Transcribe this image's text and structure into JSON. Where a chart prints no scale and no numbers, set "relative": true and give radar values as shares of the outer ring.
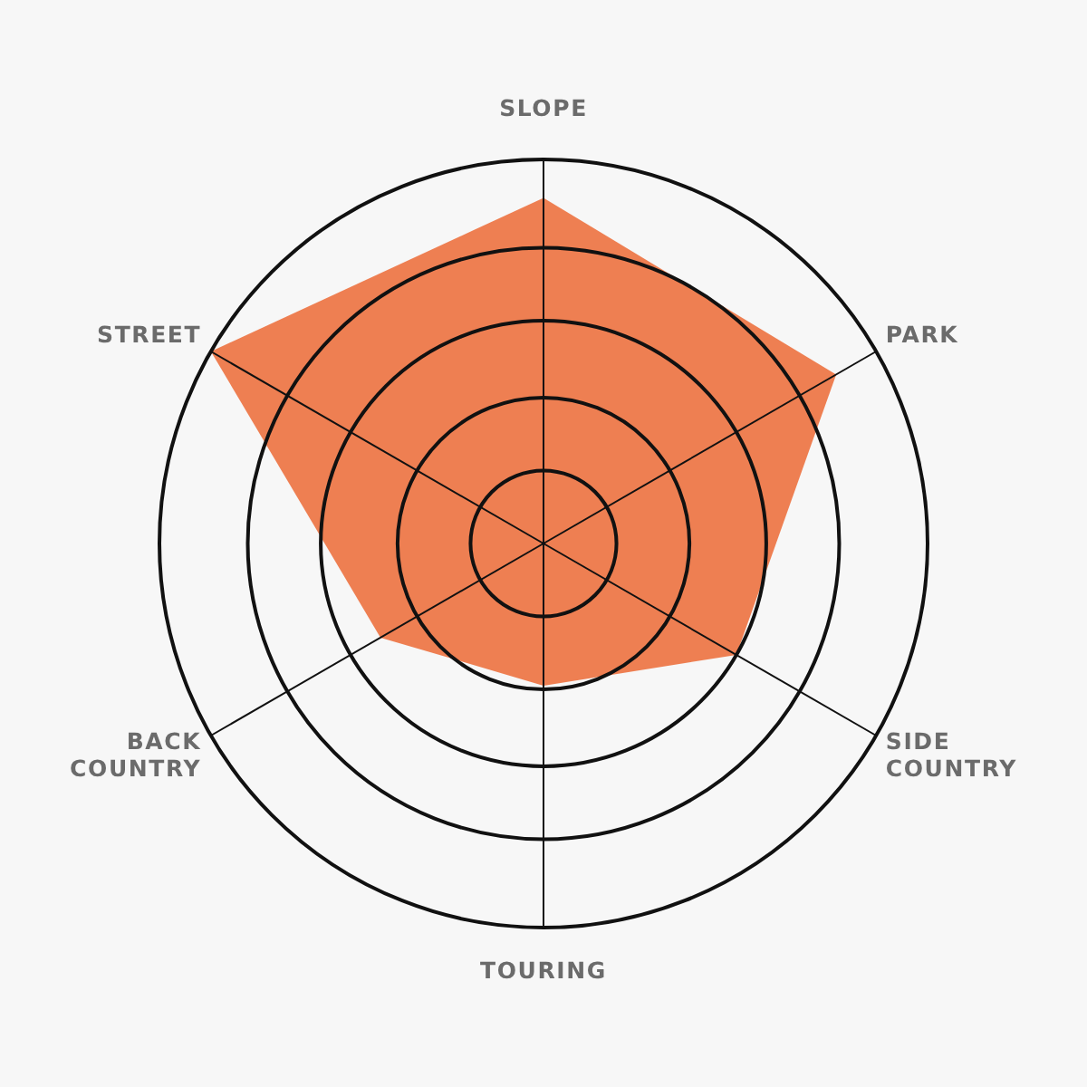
{
  "chart_data": {
    "type": "radar",
    "relative": true,
    "grid": true,
    "categories": [
      "SLOPE",
      "PARK",
      "SIDE COUNTRY",
      "TOURING",
      "BACK COUNTRY",
      "STREET"
    ],
    "series": [
      {
        "color": "#ee7f52",
        "values": [
          0.9,
          0.88,
          0.58,
          0.37,
          0.49,
          1.0
        ]
      }
    ]
  }
}
